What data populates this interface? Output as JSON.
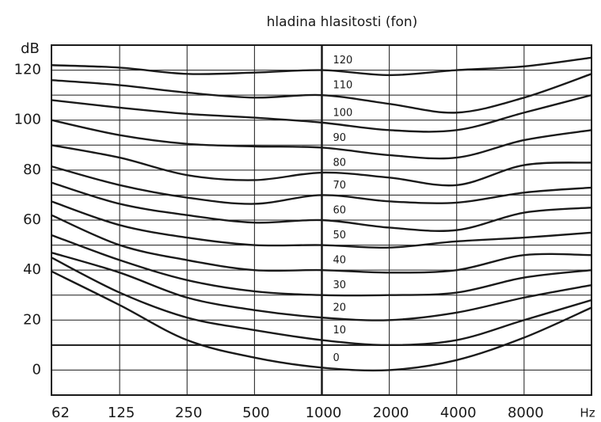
{
  "chart_data": {
    "type": "line",
    "title": "hladina hlasitosti   (fon)",
    "y_label": "dB",
    "x_label": "Hz",
    "xscale": "log",
    "xlim": [
      62,
      16000
    ],
    "xticks": [
      62,
      125,
      250,
      500,
      1000,
      2000,
      4000,
      8000
    ],
    "ylim": [
      -10,
      130
    ],
    "yticks": [
      0,
      20,
      40,
      60,
      80,
      100,
      120
    ],
    "y_minor_ticks": [
      10,
      30,
      50,
      70,
      90,
      110
    ],
    "emphasis_x": 1000,
    "emphasis_y": 10,
    "grid": true,
    "color": "#1a1a1a",
    "x": [
      62,
      125,
      250,
      500,
      1000,
      2000,
      4000,
      8000,
      16000
    ],
    "series": [
      {
        "name": "0",
        "values": [
          39.5,
          26,
          12,
          5,
          1,
          0,
          4,
          13,
          25
        ]
      },
      {
        "name": "10",
        "values": [
          45,
          31,
          21,
          16,
          12,
          10,
          12,
          20,
          28
        ]
      },
      {
        "name": "20",
        "values": [
          47,
          39,
          29,
          24,
          21,
          20,
          23,
          29,
          34
        ]
      },
      {
        "name": "30",
        "values": [
          54,
          44,
          36,
          31.5,
          30,
          30,
          31,
          37,
          40
        ]
      },
      {
        "name": "40",
        "values": [
          62,
          50,
          44,
          40,
          40,
          39,
          40,
          46,
          46
        ]
      },
      {
        "name": "50",
        "values": [
          67.5,
          58,
          53,
          50,
          50,
          49,
          51.5,
          53,
          55
        ]
      },
      {
        "name": "60",
        "values": [
          75,
          66.5,
          62,
          59,
          60,
          57,
          56,
          63,
          65
        ]
      },
      {
        "name": "70",
        "values": [
          81.5,
          74,
          69,
          66.5,
          70,
          67.5,
          67,
          71,
          73
        ]
      },
      {
        "name": "80",
        "values": [
          90,
          85,
          78,
          76,
          79,
          77,
          74,
          82,
          83
        ]
      },
      {
        "name": "90",
        "values": [
          100,
          94,
          90.5,
          89.5,
          89,
          86,
          85,
          92,
          96
        ]
      },
      {
        "name": "100",
        "values": [
          108,
          105,
          102.5,
          101,
          99,
          96,
          96,
          103,
          110
        ]
      },
      {
        "name": "110",
        "values": [
          116,
          114,
          111,
          109,
          110,
          106.5,
          103,
          109,
          118.5
        ]
      },
      {
        "name": "120",
        "values": [
          122,
          121,
          118.5,
          119,
          120,
          118,
          120,
          121.5,
          125
        ]
      }
    ]
  }
}
